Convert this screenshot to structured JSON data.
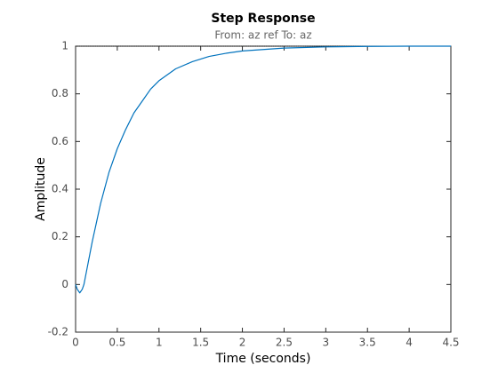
{
  "chart_data": {
    "type": "line",
    "title": "Step Response",
    "subtitle": "From: az ref  To: az",
    "xlabel": "Time (seconds)",
    "ylabel": "Amplitude",
    "x": [
      0,
      0.02,
      0.05,
      0.08,
      0.1,
      0.15,
      0.2,
      0.3,
      0.4,
      0.5,
      0.6,
      0.7,
      0.8,
      0.9,
      1.0,
      1.2,
      1.4,
      1.6,
      1.8,
      2.0,
      2.5,
      3.0,
      3.5,
      4.0,
      4.5
    ],
    "series": [
      {
        "color": "#0072bd",
        "values": [
          0,
          -0.02,
          -0.035,
          -0.02,
          0.0,
          0.09,
          0.18,
          0.34,
          0.47,
          0.57,
          0.65,
          0.72,
          0.77,
          0.82,
          0.855,
          0.905,
          0.935,
          0.957,
          0.97,
          0.98,
          0.992,
          0.997,
          0.999,
          1,
          1
        ]
      }
    ],
    "steady_state": 1,
    "xlim": [
      0,
      4.5
    ],
    "xticks": [
      0,
      0.5,
      1,
      1.5,
      2,
      2.5,
      3,
      3.5,
      4,
      4.5
    ],
    "ylim": [
      -0.2,
      1
    ],
    "yticks": [
      -0.2,
      0,
      0.2,
      0.4,
      0.6,
      0.8,
      1
    ],
    "grid": false
  }
}
